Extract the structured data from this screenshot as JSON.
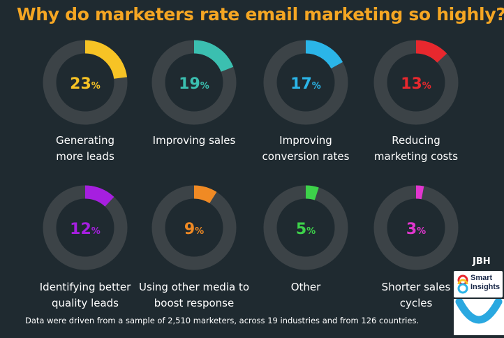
{
  "title": "Why do marketers rate  email marketing so highly?",
  "footnote": "Data were driven from a sample of 2,510 marketers, across 19 industries and from 126 countries.",
  "branding": {
    "jbh": "JBH",
    "smart_insights": "Smart Insights",
    "smart_insights_icon": "smart-insights-logo-icon",
    "smile_icon": "smile-logo-icon"
  },
  "colors": {
    "background": "#1f2a30",
    "title": "#f5a623",
    "ring_track": "#3c4347"
  },
  "chart_data": {
    "type": "pie",
    "categories": [
      "Generating more leads",
      "Improving sales",
      "Improving conversion rates",
      "Reducing marketing costs",
      "Identifying better quality leads",
      "Using other media to boost response",
      "Other",
      "Shorter sales cycles"
    ],
    "values": [
      23,
      19,
      17,
      13,
      12,
      9,
      5,
      3
    ],
    "value_labels": [
      "23%",
      "19%",
      "17%",
      "13%",
      "12%",
      "9%",
      "5%",
      "3%"
    ],
    "label_lines": [
      [
        "Generating",
        "more leads"
      ],
      [
        "Improving sales"
      ],
      [
        "Improving",
        "conversion rates"
      ],
      [
        "Reducing",
        "marketing costs"
      ],
      [
        "Identifying better",
        "quality leads"
      ],
      [
        "Using other media to",
        "boost response"
      ],
      [
        "Other"
      ],
      [
        "Shorter sales",
        "cycles"
      ]
    ],
    "colors": [
      "#f7c325",
      "#3bbfb0",
      "#2bb5e8",
      "#e8282e",
      "#a61fe0",
      "#f08a24",
      "#3dd24a",
      "#e236cf"
    ],
    "unit": "%",
    "max": 100
  }
}
